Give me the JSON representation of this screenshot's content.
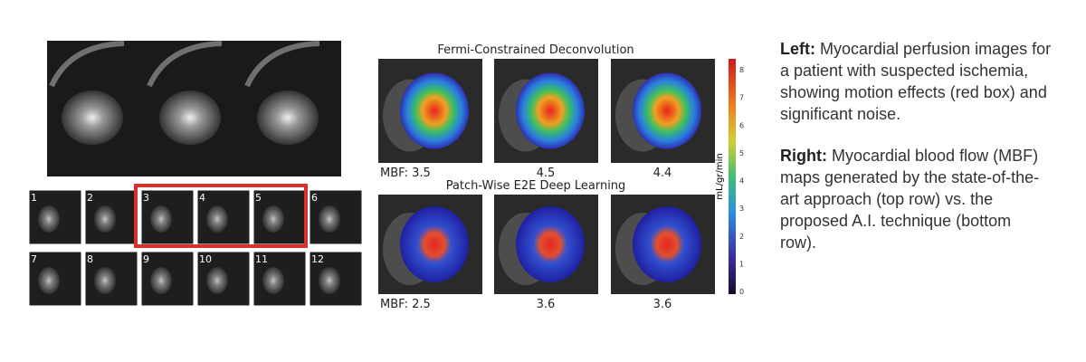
{
  "left": {
    "frames": [
      1,
      2,
      3,
      4,
      5,
      6,
      7,
      8,
      9,
      10,
      11,
      12
    ]
  },
  "right": {
    "rows": [
      {
        "title": "Fermi-Constrained Deconvolution",
        "mbf_labels": [
          "MBF: 3.5",
          "4.5",
          "4.4"
        ]
      },
      {
        "title": "Patch-Wise E2E Deep Learning",
        "mbf_labels": [
          "MBF: 2.5",
          "3.6",
          "3.6"
        ]
      }
    ],
    "colorbar": {
      "label": "mL/gr/min",
      "ticks": [
        0,
        1,
        2,
        3,
        4,
        5,
        6,
        7,
        8
      ]
    }
  },
  "caption": {
    "paragraphs": [
      {
        "heading": "Left:",
        "text": "Myocardial perfusion images for a patient with suspected ischemia, showing motion effects (red box) and significant noise."
      },
      {
        "heading": "Right:",
        "text": "Myocardial blood flow (MBF) maps generated by the state-of-the-art approach (top row) vs. the proposed A.I. technique (bottom row)."
      }
    ]
  }
}
